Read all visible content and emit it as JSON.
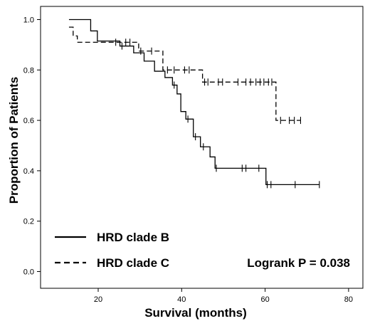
{
  "chart_data": {
    "type": "line",
    "subtype": "kaplan-meier",
    "xlabel": "Survival (months)",
    "ylabel": "Proportion of Patients",
    "xlim": [
      7,
      85
    ],
    "ylim": [
      -0.02,
      1.05
    ],
    "xticks": [
      20,
      40,
      60,
      80
    ],
    "yticks": [
      0.0,
      0.2,
      0.4,
      0.6,
      0.8,
      1.0
    ],
    "xtick_labels": [
      "20",
      "40",
      "60",
      "80"
    ],
    "ytick_labels": [
      "0.0",
      "0.2",
      "0.4",
      "0.6",
      "0.8",
      "1.0"
    ],
    "grid": false,
    "legend_position": "bottom-left",
    "annotation": "Logrank P = 0.038",
    "series": [
      {
        "name": "HRD clade B",
        "dash": "solid",
        "steps": [
          [
            13,
            1.0
          ],
          [
            18.2,
            0.955
          ],
          [
            19.8,
            0.915
          ],
          [
            25.2,
            0.895
          ],
          [
            28.5,
            0.868
          ],
          [
            31.0,
            0.835
          ],
          [
            33.5,
            0.795
          ],
          [
            36.0,
            0.77
          ],
          [
            37.8,
            0.74
          ],
          [
            38.9,
            0.705
          ],
          [
            39.8,
            0.635
          ],
          [
            41.0,
            0.605
          ],
          [
            42.8,
            0.535
          ],
          [
            44.5,
            0.495
          ],
          [
            46.8,
            0.455
          ],
          [
            48.0,
            0.41
          ],
          [
            60.2,
            0.345
          ]
        ],
        "end": 73,
        "censors": [
          [
            25.7,
            0.895
          ],
          [
            38.2,
            0.74
          ],
          [
            41.5,
            0.605
          ],
          [
            43.3,
            0.535
          ],
          [
            45.2,
            0.495
          ],
          [
            48.3,
            0.41
          ],
          [
            54.5,
            0.41
          ],
          [
            55.4,
            0.41
          ],
          [
            58.5,
            0.41
          ],
          [
            60.5,
            0.345
          ],
          [
            61.4,
            0.345
          ],
          [
            67.2,
            0.345
          ],
          [
            73.0,
            0.345
          ]
        ]
      },
      {
        "name": "HRD clade C",
        "dash": "dashed",
        "steps": [
          [
            13,
            0.97
          ],
          [
            14.0,
            0.935
          ],
          [
            15.0,
            0.91
          ],
          [
            29.7,
            0.875
          ],
          [
            35.5,
            0.8
          ],
          [
            45.0,
            0.752
          ],
          [
            62.6,
            0.6
          ]
        ],
        "end": 68.5,
        "censors": [
          [
            24.2,
            0.91
          ],
          [
            26.6,
            0.91
          ],
          [
            27.6,
            0.91
          ],
          [
            30.2,
            0.875
          ],
          [
            32.8,
            0.875
          ],
          [
            36.6,
            0.8
          ],
          [
            38.2,
            0.8
          ],
          [
            40.7,
            0.8
          ],
          [
            41.8,
            0.8
          ],
          [
            45.5,
            0.752
          ],
          [
            46.3,
            0.752
          ],
          [
            48.8,
            0.752
          ],
          [
            49.8,
            0.752
          ],
          [
            53.5,
            0.752
          ],
          [
            55.4,
            0.752
          ],
          [
            56.5,
            0.752
          ],
          [
            57.8,
            0.752
          ],
          [
            58.8,
            0.752
          ],
          [
            59.7,
            0.752
          ],
          [
            60.8,
            0.752
          ],
          [
            61.6,
            0.752
          ],
          [
            63.7,
            0.6
          ],
          [
            65.8,
            0.6
          ],
          [
            67.0,
            0.6
          ],
          [
            68.5,
            0.6
          ]
        ]
      }
    ]
  }
}
